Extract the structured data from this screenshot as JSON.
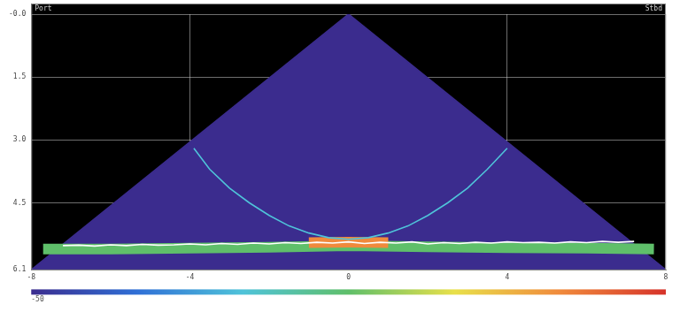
{
  "chart_data": {
    "type": "line",
    "header": {
      "left": "Port",
      "right": "Stbd"
    },
    "xlim": [
      -8,
      8
    ],
    "xticks": [
      -8,
      -4,
      0,
      4,
      8
    ],
    "ylim": [
      0,
      6.1
    ],
    "yticks": [
      {
        "value": 0,
        "label": "-0.0"
      },
      1.5,
      {
        "value": 3,
        "label": "3.0"
      },
      4.5,
      6.1
    ],
    "grid": true,
    "series": [
      {
        "type": "area",
        "color": "#3b2c8e",
        "line_style": "solid",
        "x": [
          -8,
          0,
          8
        ],
        "values": [
          6.1,
          0,
          6.1
        ]
      },
      {
        "type": "line",
        "color": "#5fbf6a",
        "line_style": "band",
        "x": [
          -7.7,
          -6,
          -4,
          -2,
          0,
          2,
          4,
          6,
          7.7
        ],
        "values": [
          5.6,
          5.6,
          5.58,
          5.56,
          5.52,
          5.55,
          5.57,
          5.58,
          5.6
        ]
      },
      {
        "type": "line",
        "color": "#f08a3c",
        "line_style": "band",
        "x": [
          -1,
          0,
          1
        ],
        "values": [
          5.45,
          5.44,
          5.45
        ]
      },
      {
        "type": "line",
        "color": "#4fc3d9",
        "line_style": "solid",
        "x": [
          -3.9,
          -3.5,
          -3,
          -2.5,
          -2,
          -1.5,
          -1,
          -0.5,
          0,
          0.5,
          1,
          1.5,
          2,
          2.5,
          3,
          3.5,
          4
        ],
        "values": [
          3.2,
          3.7,
          4.15,
          4.5,
          4.8,
          5.05,
          5.22,
          5.33,
          5.37,
          5.33,
          5.22,
          5.05,
          4.8,
          4.5,
          4.15,
          3.7,
          3.2
        ]
      },
      {
        "type": "line",
        "color": "#ffffff",
        "line_style": "solid",
        "x": [
          -7.2,
          -6.8,
          -6.4,
          -6,
          -5.6,
          -5.2,
          -4.8,
          -4.4,
          -4,
          -3.6,
          -3.2,
          -2.8,
          -2.4,
          -2,
          -1.6,
          -1.2,
          -0.8,
          -0.4,
          0,
          0.4,
          0.8,
          1.2,
          1.6,
          2,
          2.4,
          2.8,
          3.2,
          3.6,
          4,
          4.4,
          4.8,
          5.2,
          5.6,
          6,
          6.4,
          6.8,
          7.2
        ],
        "values": [
          5.52,
          5.51,
          5.53,
          5.5,
          5.52,
          5.49,
          5.51,
          5.5,
          5.48,
          5.5,
          5.47,
          5.49,
          5.46,
          5.48,
          5.45,
          5.47,
          5.44,
          5.46,
          5.43,
          5.47,
          5.44,
          5.46,
          5.43,
          5.48,
          5.45,
          5.47,
          5.44,
          5.46,
          5.43,
          5.45,
          5.44,
          5.46,
          5.43,
          5.45,
          5.42,
          5.44,
          5.42
        ]
      }
    ],
    "colorbar": {
      "lim": [
        -50,
        0
      ],
      "ticks": [
        -50
      ],
      "colors": [
        "#3b2c8e",
        "#2f6fd6",
        "#4fc3d9",
        "#5fbf6a",
        "#e8e04a",
        "#f08a3c",
        "#d6332a"
      ]
    }
  }
}
